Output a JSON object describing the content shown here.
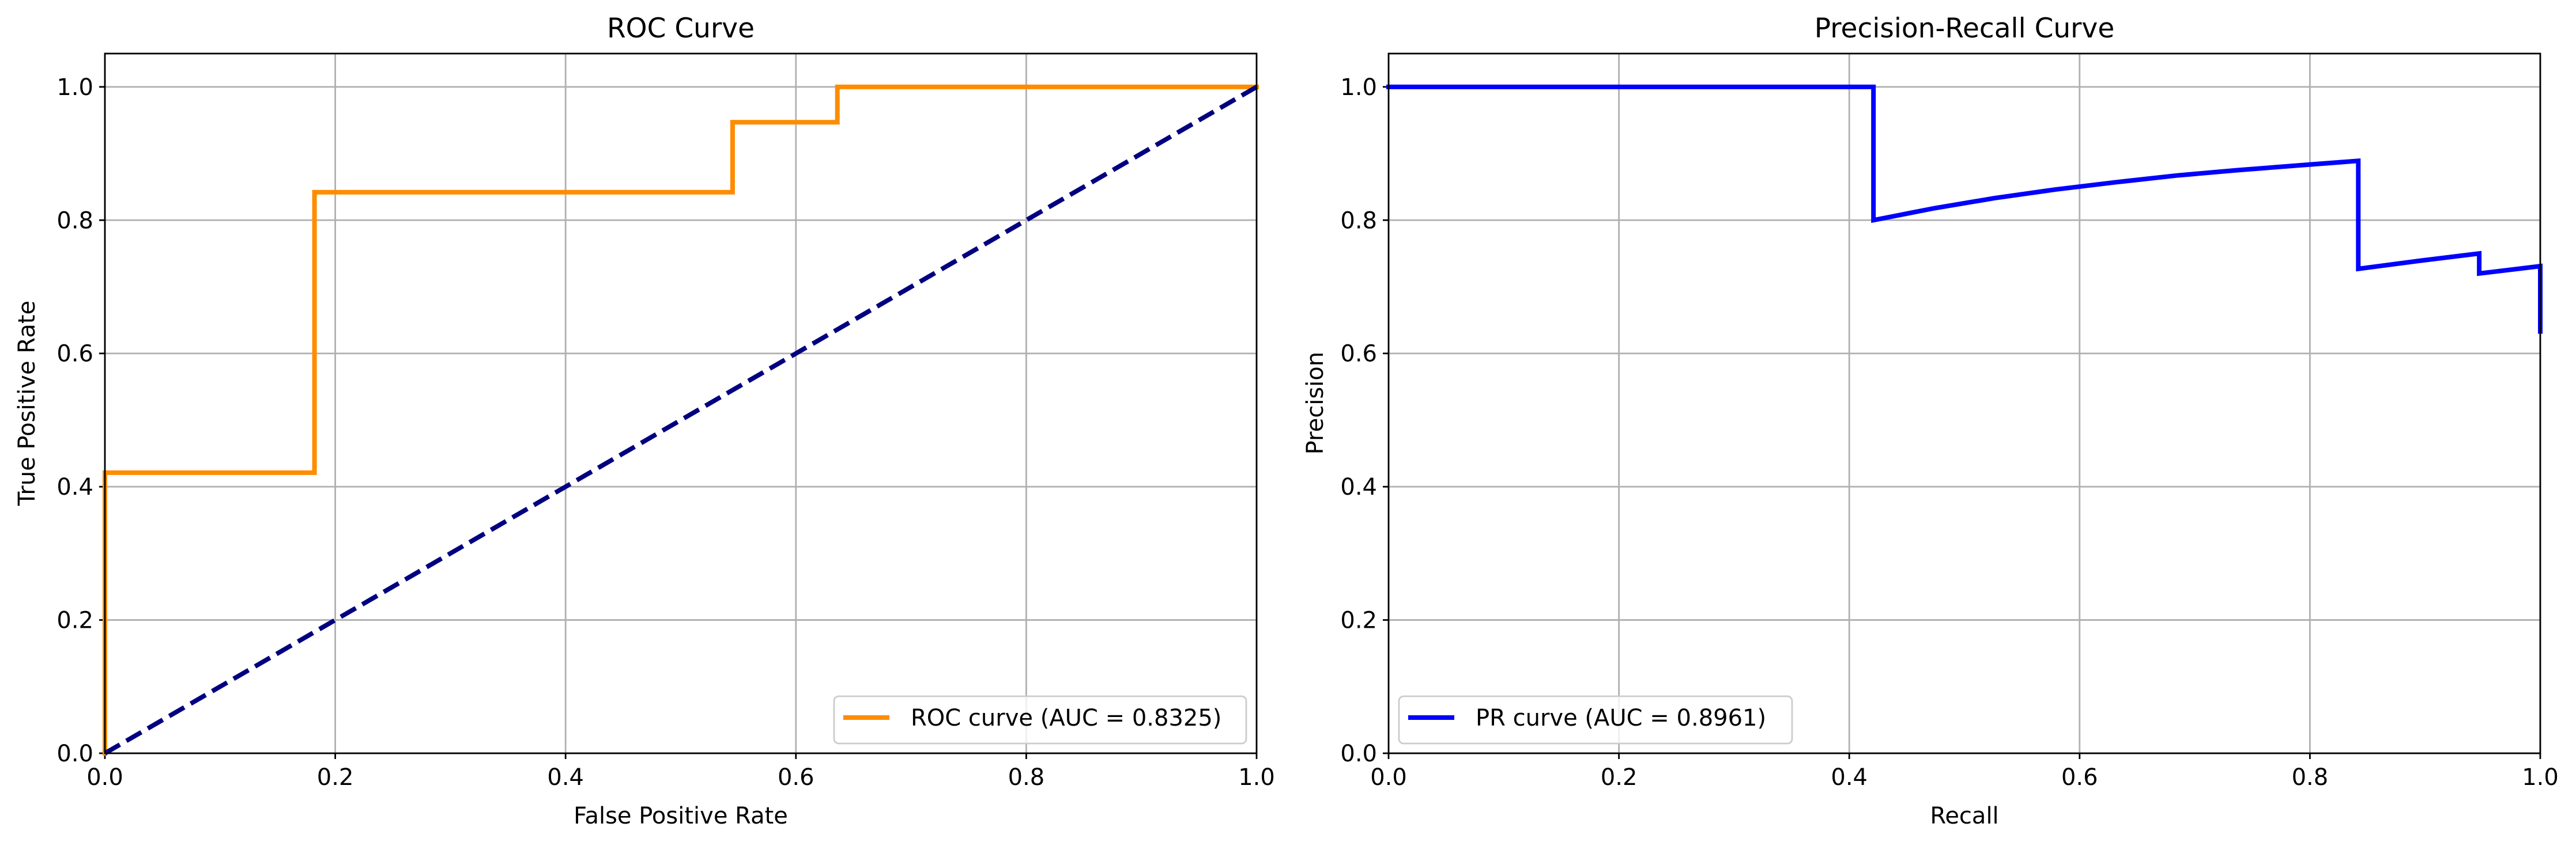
{
  "chart_data": [
    {
      "type": "line",
      "title": "ROC Curve",
      "xlabel": "False Positive Rate",
      "ylabel": "True Positive Rate",
      "xlim": [
        0.0,
        1.0
      ],
      "ylim": [
        0.0,
        1.05
      ],
      "x_ticks": [
        0.0,
        0.2,
        0.4,
        0.6,
        0.8,
        1.0
      ],
      "y_ticks": [
        0.0,
        0.2,
        0.4,
        0.6,
        0.8,
        1.0
      ],
      "x_tick_labels": [
        "0.0",
        "0.2",
        "0.4",
        "0.6",
        "0.8",
        "1.0"
      ],
      "y_tick_labels": [
        "0.0",
        "0.2",
        "0.4",
        "0.6",
        "0.8",
        "1.0"
      ],
      "grid": true,
      "legend_position": "lower right",
      "series": [
        {
          "name": "ROC curve (AUC = 0.8325)",
          "color": "#ff8c00",
          "line_style": "solid",
          "x": [
            0.0,
            0.0,
            0.182,
            0.182,
            0.545,
            0.545,
            0.636,
            0.636,
            1.0
          ],
          "y": [
            0.0,
            0.421,
            0.421,
            0.842,
            0.842,
            0.947,
            0.947,
            1.0,
            1.0
          ]
        },
        {
          "color": "#000080",
          "line_style": "dashed",
          "x": [
            0.0,
            1.0
          ],
          "y": [
            0.0,
            1.0
          ]
        }
      ]
    },
    {
      "type": "line",
      "title": "Precision-Recall Curve",
      "xlabel": "Recall",
      "ylabel": "Precision",
      "xlim": [
        0.0,
        1.0
      ],
      "ylim": [
        0.0,
        1.05
      ],
      "x_ticks": [
        0.0,
        0.2,
        0.4,
        0.6,
        0.8,
        1.0
      ],
      "y_ticks": [
        0.0,
        0.2,
        0.4,
        0.6,
        0.8,
        1.0
      ],
      "x_tick_labels": [
        "0.0",
        "0.2",
        "0.4",
        "0.6",
        "0.8",
        "1.0"
      ],
      "y_tick_labels": [
        "0.0",
        "0.2",
        "0.4",
        "0.6",
        "0.8",
        "1.0"
      ],
      "grid": true,
      "legend_position": "lower left",
      "series": [
        {
          "name": "PR curve (AUC = 0.8961)",
          "color": "#0000ff",
          "line_style": "solid",
          "x": [
            0.0,
            0.421,
            0.421,
            0.474,
            0.526,
            0.579,
            0.632,
            0.684,
            0.737,
            0.789,
            0.842,
            0.842,
            0.895,
            0.947,
            0.947,
            1.0,
            1.0
          ],
          "y": [
            1.0,
            1.0,
            0.8,
            0.818,
            0.833,
            0.846,
            0.857,
            0.867,
            0.875,
            0.882,
            0.889,
            0.727,
            0.739,
            0.75,
            0.72,
            0.731,
            0.633
          ]
        }
      ]
    }
  ]
}
